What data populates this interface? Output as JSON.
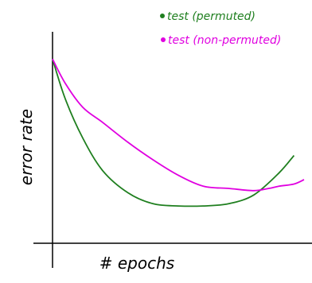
{
  "chart_data": {
    "type": "line",
    "xlabel": "# epochs",
    "ylabel": "error rate",
    "grid": false,
    "legend_position": "top-right",
    "series": [
      {
        "name": "test (permuted)",
        "color": "#1f7f1f",
        "x": [
          0,
          0.05,
          0.12,
          0.2,
          0.3,
          0.4,
          0.5,
          0.6,
          0.7,
          0.8,
          0.9,
          0.96
        ],
        "y": [
          0.84,
          0.66,
          0.48,
          0.33,
          0.23,
          0.18,
          0.17,
          0.17,
          0.18,
          0.22,
          0.32,
          0.4
        ]
      },
      {
        "name": "test (non-permuted)",
        "color": "#e000e0",
        "x": [
          0,
          0.05,
          0.12,
          0.2,
          0.3,
          0.4,
          0.5,
          0.6,
          0.7,
          0.8,
          0.86,
          0.9,
          0.96,
          1.0
        ],
        "y": [
          0.84,
          0.73,
          0.62,
          0.55,
          0.46,
          0.38,
          0.31,
          0.26,
          0.25,
          0.24,
          0.25,
          0.26,
          0.27,
          0.29
        ]
      }
    ]
  }
}
